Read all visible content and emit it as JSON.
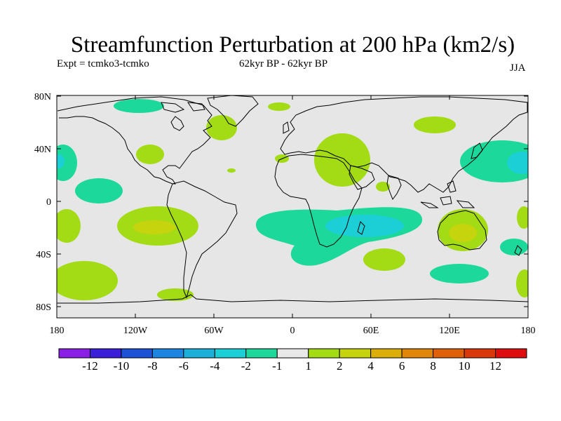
{
  "title": "Streamfunction Perturbation at 200 hPa (km2/s)",
  "experiment": "Expt = tcmko3-tcmko",
  "period": "62kyr BP - 62kyr BP",
  "season": "JJA",
  "map": {
    "lat_ticks": [
      "80N",
      "40N",
      "0",
      "40S",
      "80S"
    ],
    "lon_ticks": [
      "180",
      "120W",
      "60W",
      "0",
      "60E",
      "120E",
      "180"
    ],
    "land_color": "#e6e6e6",
    "coast_color": "#000000"
  },
  "colorbar": {
    "colors": [
      "#8c1fe6",
      "#3a1fd9",
      "#1c52d6",
      "#1c85e0",
      "#1cafd9",
      "#1ccfd6",
      "#1cd89a",
      "#e8e8e8",
      "#a3db14",
      "#c6d40e",
      "#dcae0a",
      "#e0860a",
      "#e0600a",
      "#d9390a",
      "#de0e0e"
    ],
    "labels": [
      "-12",
      "-10",
      "-8",
      "-6",
      "-4",
      "-2",
      "-1",
      "1",
      "2",
      "4",
      "6",
      "8",
      "10",
      "12"
    ]
  }
}
